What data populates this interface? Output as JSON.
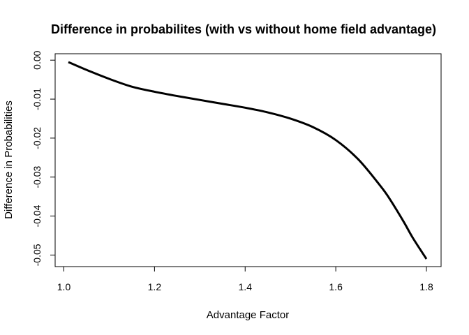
{
  "chart_data": {
    "type": "line",
    "title": "Difference in probabilites (with vs without home field advantage)",
    "xlabel": "Advantage Factor",
    "ylabel": "Difference in Probabilities",
    "xlim": [
      1.01,
      1.8
    ],
    "ylim": [
      -0.051,
      -0.0005
    ],
    "x_ticks": [
      1.0,
      1.2,
      1.4,
      1.6,
      1.8
    ],
    "x_tick_labels": [
      "1.0",
      "1.2",
      "1.4",
      "1.6",
      "1.8"
    ],
    "y_ticks": [
      0.0,
      -0.01,
      -0.02,
      -0.03,
      -0.04,
      -0.05
    ],
    "y_tick_labels": [
      "0.00",
      "-0.01",
      "-0.02",
      "-0.03",
      "-0.04",
      "-0.05"
    ],
    "grid": false,
    "series": [
      {
        "color": "#000000",
        "x": [
          1.01,
          1.05,
          1.1,
          1.15,
          1.2,
          1.25,
          1.3,
          1.35,
          1.4,
          1.45,
          1.5,
          1.55,
          1.6,
          1.65,
          1.7,
          1.72,
          1.75,
          1.77,
          1.8
        ],
        "y": [
          -0.0005,
          -0.0025,
          -0.0048,
          -0.0068,
          -0.0081,
          -0.0092,
          -0.0102,
          -0.0112,
          -0.0122,
          -0.0134,
          -0.015,
          -0.0172,
          -0.0205,
          -0.0255,
          -0.0325,
          -0.0358,
          -0.0415,
          -0.0456,
          -0.051
        ]
      }
    ]
  }
}
